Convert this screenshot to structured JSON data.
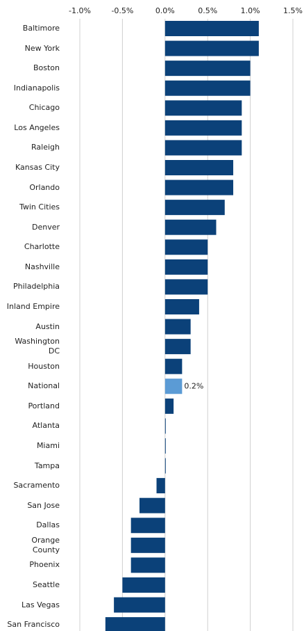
{
  "chart_data": {
    "type": "bar",
    "orientation": "horizontal",
    "categories": [
      "Baltimore",
      "New York",
      "Boston",
      "Indianapolis",
      "Chicago",
      "Los Angeles",
      "Raleigh",
      "Kansas City",
      "Orlando",
      "Twin Cities",
      "Denver",
      "Charlotte",
      "Nashville",
      "Philadelphia",
      "Inland Empire",
      "Austin",
      "Washington\nDC",
      "Houston",
      "National",
      "Portland",
      "Atlanta",
      "Miami",
      "Tampa",
      "Sacramento",
      "San Jose",
      "Dallas",
      "Orange\nCounty",
      "Phoenix",
      "Seattle",
      "Las Vegas",
      "San Francisco"
    ],
    "values": [
      1.1,
      1.1,
      1.0,
      1.0,
      0.9,
      0.9,
      0.9,
      0.8,
      0.8,
      0.7,
      0.6,
      0.5,
      0.5,
      0.5,
      0.4,
      0.3,
      0.3,
      0.2,
      0.2,
      0.1,
      0.0,
      0.0,
      0.0,
      -0.1,
      -0.3,
      -0.4,
      -0.4,
      -0.4,
      -0.5,
      -0.6,
      -0.7
    ],
    "value_labels": [
      null,
      null,
      null,
      null,
      null,
      null,
      null,
      null,
      null,
      null,
      null,
      null,
      null,
      null,
      null,
      null,
      null,
      null,
      "0.2%",
      null,
      null,
      null,
      null,
      null,
      null,
      null,
      null,
      null,
      null,
      null,
      null
    ],
    "colors": [
      "#0b4179",
      "#0b4179",
      "#0b4179",
      "#0b4179",
      "#0b4179",
      "#0b4179",
      "#0b4179",
      "#0b4179",
      "#0b4179",
      "#0b4179",
      "#0b4179",
      "#0b4179",
      "#0b4179",
      "#0b4179",
      "#0b4179",
      "#0b4179",
      "#0b4179",
      "#0b4179",
      "#5b9bd5",
      "#0b4179",
      "#0b4179",
      "#0b4179",
      "#0b4179",
      "#0b4179",
      "#0b4179",
      "#0b4179",
      "#0b4179",
      "#0b4179",
      "#0b4179",
      "#0b4179",
      "#0b4179"
    ],
    "xlim": [
      -1.0,
      1.5
    ],
    "xticks": [
      {
        "value": -1.0,
        "label": "-1.0%"
      },
      {
        "value": -0.5,
        "label": "-0.5%"
      },
      {
        "value": 0.0,
        "label": "0.0%"
      },
      {
        "value": 0.5,
        "label": "0.5%"
      },
      {
        "value": 1.0,
        "label": "1.0%"
      },
      {
        "value": 1.5,
        "label": "1.5%"
      }
    ],
    "grid": true
  }
}
